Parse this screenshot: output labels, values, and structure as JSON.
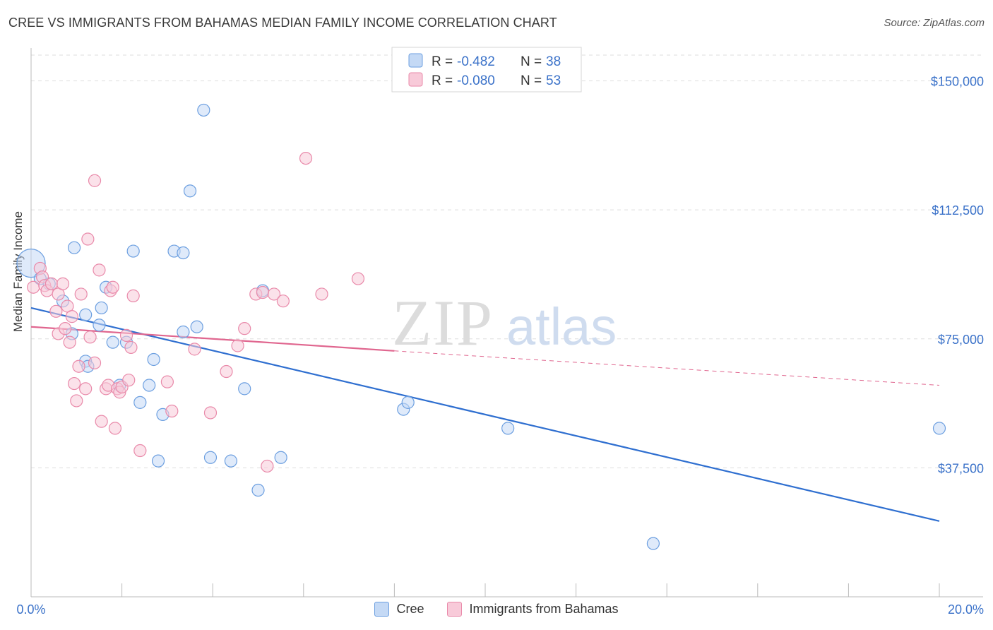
{
  "title": "CREE VS IMMIGRANTS FROM BAHAMAS MEDIAN FAMILY INCOME CORRELATION CHART",
  "source": "Source: ZipAtlas.com",
  "watermark": {
    "zip": "ZIP",
    "atlas": "atlas"
  },
  "chart_data": {
    "type": "scatter",
    "xlabel": "",
    "ylabel": "Median Family Income",
    "xlim": [
      0,
      20
    ],
    "ylim": [
      0,
      157500
    ],
    "x_tick_labels": [
      "0.0%",
      "20.0%"
    ],
    "y_ticks": [
      37500,
      75000,
      112500,
      150000
    ],
    "y_tick_labels": [
      "$37,500",
      "$75,000",
      "$112,500",
      "$150,000"
    ],
    "grid": true,
    "legend_placement": "top-center",
    "stats_legend": [
      {
        "r_label": "R =",
        "r_value": "-0.482",
        "n_label": "N =",
        "n_value": "38"
      },
      {
        "r_label": "R =",
        "r_value": "-0.080",
        "n_label": "N =",
        "n_value": "53"
      }
    ],
    "series": [
      {
        "name": "Cree",
        "color": "#6c9fe0",
        "fill": "#c4d9f5",
        "line_color": "#2f6fd0",
        "trend": {
          "x0": 0,
          "y0": 84000,
          "x1": 20,
          "y1": 22000
        },
        "points": [
          [
            0,
            97000
          ],
          [
            0.2,
            92500
          ],
          [
            0.4,
            91000
          ],
          [
            0.7,
            86000
          ],
          [
            0.9,
            76500
          ],
          [
            1.2,
            82000
          ],
          [
            0.95,
            101500
          ],
          [
            1.2,
            68500
          ],
          [
            1.25,
            67000
          ],
          [
            1.5,
            79000
          ],
          [
            1.55,
            84000
          ],
          [
            1.65,
            90000
          ],
          [
            1.8,
            74000
          ],
          [
            1.95,
            61500
          ],
          [
            2.1,
            74000
          ],
          [
            2.25,
            100500
          ],
          [
            2.4,
            56500
          ],
          [
            2.6,
            61500
          ],
          [
            2.7,
            69000
          ],
          [
            2.8,
            39500
          ],
          [
            2.9,
            53000
          ],
          [
            3.15,
            100500
          ],
          [
            3.35,
            100000
          ],
          [
            3.35,
            77000
          ],
          [
            3.5,
            118000
          ],
          [
            3.65,
            78500
          ],
          [
            3.8,
            141500
          ],
          [
            3.95,
            40500
          ],
          [
            4.4,
            39500
          ],
          [
            4.7,
            60500
          ],
          [
            5.0,
            31000
          ],
          [
            5.1,
            89000
          ],
          [
            5.5,
            40500
          ],
          [
            8.2,
            54500
          ],
          [
            8.3,
            56500
          ],
          [
            10.5,
            49000
          ],
          [
            13.7,
            15500
          ],
          [
            20.0,
            49000
          ]
        ]
      },
      {
        "name": "Immigrants from Bahamas",
        "color": "#e98aaa",
        "fill": "#f8cad9",
        "line_color": "#e0668f",
        "trend": {
          "x0": 0,
          "y0": 78500,
          "x1": 8,
          "y1": 71500
        },
        "trend_dashed": {
          "x0": 8,
          "y0": 71500,
          "x1": 20,
          "y1": 61500
        },
        "points": [
          [
            0.05,
            90000
          ],
          [
            0.2,
            95500
          ],
          [
            0.25,
            93000
          ],
          [
            0.3,
            90500
          ],
          [
            0.35,
            89000
          ],
          [
            0.45,
            91000
          ],
          [
            0.55,
            83000
          ],
          [
            0.6,
            88000
          ],
          [
            0.6,
            76500
          ],
          [
            0.7,
            91000
          ],
          [
            0.75,
            78000
          ],
          [
            0.8,
            84500
          ],
          [
            0.85,
            74000
          ],
          [
            0.9,
            81500
          ],
          [
            0.95,
            62000
          ],
          [
            1.0,
            57000
          ],
          [
            1.05,
            67000
          ],
          [
            1.1,
            88000
          ],
          [
            1.2,
            60500
          ],
          [
            1.25,
            104000
          ],
          [
            1.3,
            75500
          ],
          [
            1.4,
            68000
          ],
          [
            1.4,
            121000
          ],
          [
            1.5,
            95000
          ],
          [
            1.55,
            51000
          ],
          [
            1.65,
            60500
          ],
          [
            1.7,
            61500
          ],
          [
            1.75,
            89000
          ],
          [
            1.8,
            90000
          ],
          [
            1.85,
            49000
          ],
          [
            1.9,
            60500
          ],
          [
            1.95,
            59500
          ],
          [
            2.0,
            61000
          ],
          [
            2.1,
            76000
          ],
          [
            2.15,
            63000
          ],
          [
            2.2,
            72500
          ],
          [
            2.25,
            87500
          ],
          [
            2.4,
            42500
          ],
          [
            3.0,
            62500
          ],
          [
            3.1,
            54000
          ],
          [
            3.6,
            72000
          ],
          [
            3.95,
            53500
          ],
          [
            4.3,
            65500
          ],
          [
            4.55,
            73000
          ],
          [
            4.7,
            78000
          ],
          [
            4.95,
            88000
          ],
          [
            5.1,
            88500
          ],
          [
            5.2,
            38000
          ],
          [
            5.35,
            88000
          ],
          [
            5.55,
            86000
          ],
          [
            6.05,
            127500
          ],
          [
            6.4,
            88000
          ],
          [
            7.2,
            92500
          ]
        ]
      }
    ]
  }
}
